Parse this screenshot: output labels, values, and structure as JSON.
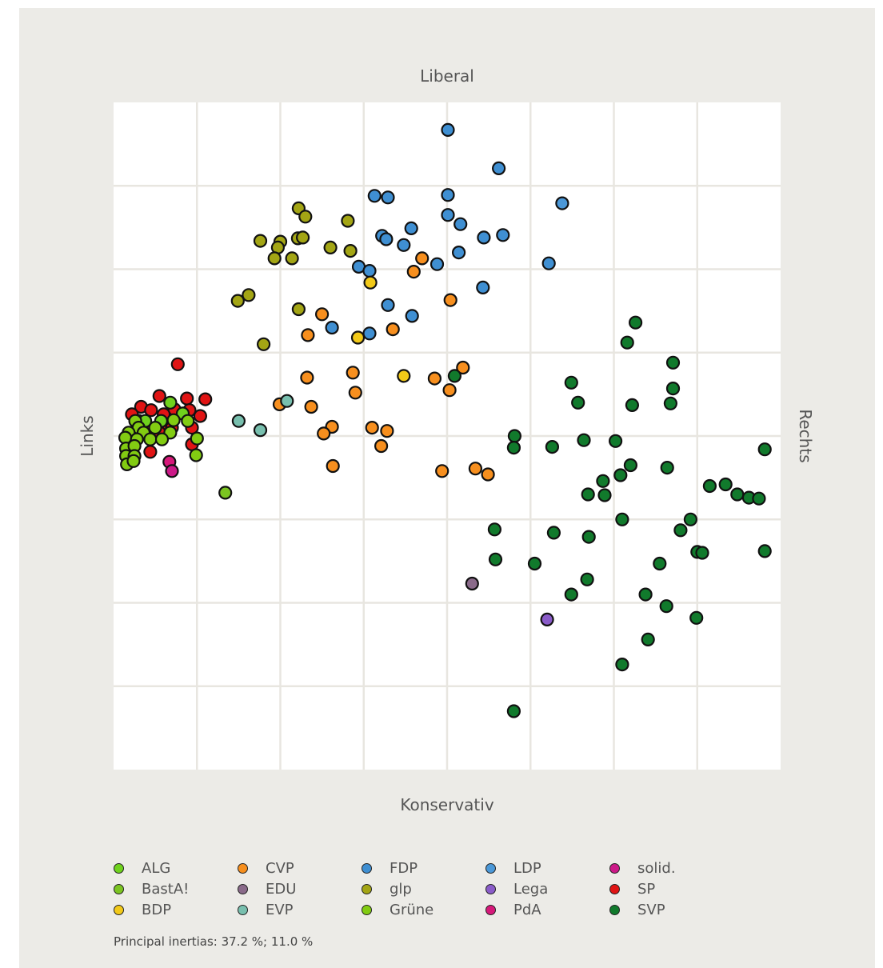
{
  "chart_data": {
    "type": "scatter",
    "title": "",
    "labels": {
      "top": "Liberal",
      "bottom": "Konservativ",
      "left": "Links",
      "right": "Rechts"
    },
    "xlim": [
      0,
      8
    ],
    "ylim": [
      -8,
      0
    ],
    "grid": true,
    "colors": {
      "ALG": "#6fd21d",
      "EVP": "#78bfae",
      "Lega": "#8a5cc9",
      "BastA!": "#7bc421",
      "FDP": "#3f8fd2",
      "PdA": "#d6197a",
      "BDP": "#f2c918",
      "glp": "#a3a514",
      "solid.": "#cc1a88",
      "CVP": "#f78f1e",
      "Grüne": "#82cc12",
      "SP": "#e01414",
      "EDU": "#8a6a8a",
      "LDP": "#4b98d8",
      "SVP": "#117a2c"
    },
    "series": [
      {
        "name": "FDP",
        "points": [
          [
            4.01,
            -0.33
          ],
          [
            4.62,
            -0.79
          ],
          [
            3.13,
            -1.12
          ],
          [
            3.29,
            -1.14
          ],
          [
            4.01,
            -1.11
          ],
          [
            4.01,
            -1.35
          ],
          [
            4.16,
            -1.46
          ],
          [
            3.57,
            -1.51
          ],
          [
            3.22,
            -1.6
          ],
          [
            3.27,
            -1.64
          ],
          [
            3.48,
            -1.71
          ],
          [
            4.44,
            -1.62
          ],
          [
            4.67,
            -1.59
          ],
          [
            4.14,
            -1.8
          ],
          [
            3.88,
            -1.94
          ],
          [
            5.22,
            -1.93
          ],
          [
            2.94,
            -1.97
          ],
          [
            3.07,
            -2.02
          ],
          [
            4.43,
            -2.22
          ],
          [
            3.29,
            -2.43
          ],
          [
            3.58,
            -2.56
          ],
          [
            2.62,
            -2.7
          ],
          [
            3.07,
            -2.77
          ]
        ]
      },
      {
        "name": "LDP",
        "points": [
          [
            5.38,
            -1.21
          ]
        ]
      },
      {
        "name": "glp",
        "points": [
          [
            2.22,
            -1.27
          ],
          [
            2.3,
            -1.37
          ],
          [
            2.81,
            -1.42
          ],
          [
            1.76,
            -1.66
          ],
          [
            2.0,
            -1.67
          ],
          [
            2.21,
            -1.63
          ],
          [
            2.27,
            -1.62
          ],
          [
            1.97,
            -1.74
          ],
          [
            2.6,
            -1.74
          ],
          [
            2.84,
            -1.78
          ],
          [
            1.93,
            -1.87
          ],
          [
            2.14,
            -1.87
          ],
          [
            1.49,
            -2.38
          ],
          [
            1.62,
            -2.31
          ],
          [
            2.22,
            -2.48
          ],
          [
            1.8,
            -2.9
          ]
        ]
      },
      {
        "name": "BDP",
        "points": [
          [
            3.08,
            -2.16
          ],
          [
            2.93,
            -2.82
          ],
          [
            3.48,
            -3.28
          ]
        ]
      },
      {
        "name": "CVP",
        "points": [
          [
            3.7,
            -1.87
          ],
          [
            3.6,
            -2.03
          ],
          [
            4.04,
            -2.37
          ],
          [
            2.5,
            -2.54
          ],
          [
            2.33,
            -2.79
          ],
          [
            3.35,
            -2.72
          ],
          [
            4.19,
            -3.18
          ],
          [
            2.87,
            -3.24
          ],
          [
            2.32,
            -3.3
          ],
          [
            3.85,
            -3.31
          ],
          [
            4.03,
            -3.45
          ],
          [
            2.9,
            -3.48
          ],
          [
            1.99,
            -3.62
          ],
          [
            2.37,
            -3.65
          ],
          [
            2.62,
            -3.89
          ],
          [
            3.1,
            -3.9
          ],
          [
            3.28,
            -3.94
          ],
          [
            2.52,
            -3.97
          ],
          [
            3.21,
            -4.12
          ],
          [
            2.63,
            -4.36
          ],
          [
            4.34,
            -4.39
          ],
          [
            3.94,
            -4.42
          ],
          [
            4.49,
            -4.46
          ]
        ]
      },
      {
        "name": "EVP",
        "points": [
          [
            2.08,
            -3.58
          ],
          [
            1.5,
            -3.82
          ],
          [
            1.76,
            -3.93
          ]
        ]
      },
      {
        "name": "SP",
        "points": [
          [
            0.77,
            -3.14
          ],
          [
            0.55,
            -3.52
          ],
          [
            0.88,
            -3.55
          ],
          [
            1.1,
            -3.56
          ],
          [
            0.33,
            -3.65
          ],
          [
            0.45,
            -3.69
          ],
          [
            0.73,
            -3.68
          ],
          [
            0.91,
            -3.69
          ],
          [
            0.22,
            -3.74
          ],
          [
            0.6,
            -3.74
          ],
          [
            1.04,
            -3.76
          ],
          [
            0.38,
            -3.87
          ],
          [
            0.65,
            -3.86
          ],
          [
            0.46,
            -3.91
          ],
          [
            0.7,
            -3.9
          ],
          [
            0.94,
            -3.9
          ],
          [
            0.3,
            -3.96
          ],
          [
            0.55,
            -3.96
          ],
          [
            0.2,
            -4.0
          ],
          [
            0.94,
            -4.1
          ],
          [
            0.44,
            -4.19
          ]
        ]
      },
      {
        "name": "ALG",
        "points": [
          [
            0.68,
            -3.6
          ],
          [
            0.83,
            -3.73
          ],
          [
            0.3,
            -3.82
          ],
          [
            0.57,
            -3.82
          ],
          [
            0.38,
            -3.82
          ]
        ]
      },
      {
        "name": "Grüne",
        "points": [
          [
            0.26,
            -3.82
          ],
          [
            0.72,
            -3.81
          ],
          [
            0.89,
            -3.82
          ],
          [
            0.3,
            -3.9
          ],
          [
            0.5,
            -3.9
          ],
          [
            0.18,
            -3.96
          ],
          [
            0.36,
            -3.96
          ],
          [
            0.68,
            -3.96
          ],
          [
            0.14,
            -4.02
          ],
          [
            0.28,
            -4.04
          ],
          [
            0.44,
            -4.04
          ],
          [
            0.58,
            -4.04
          ],
          [
            1.0,
            -4.03
          ],
          [
            0.15,
            -4.15
          ],
          [
            0.25,
            -4.12
          ],
          [
            0.99,
            -4.23
          ],
          [
            0.15,
            -4.24
          ],
          [
            0.25,
            -4.24
          ],
          [
            0.16,
            -4.34
          ],
          [
            0.24,
            -4.3
          ]
        ]
      },
      {
        "name": "BastA!",
        "points": [
          [
            1.34,
            -4.68
          ]
        ]
      },
      {
        "name": "PdA",
        "points": [
          [
            0.67,
            -4.31
          ]
        ]
      },
      {
        "name": "solid.",
        "points": [
          [
            0.7,
            -4.42
          ]
        ]
      },
      {
        "name": "SVP",
        "points": [
          [
            6.26,
            -2.64
          ],
          [
            6.16,
            -2.88
          ],
          [
            6.71,
            -3.12
          ],
          [
            4.09,
            -3.28
          ],
          [
            5.49,
            -3.36
          ],
          [
            6.71,
            -3.43
          ],
          [
            6.68,
            -3.61
          ],
          [
            6.22,
            -3.63
          ],
          [
            5.57,
            -3.6
          ],
          [
            4.81,
            -4.0
          ],
          [
            5.64,
            -4.05
          ],
          [
            6.02,
            -4.06
          ],
          [
            4.8,
            -4.14
          ],
          [
            5.26,
            -4.13
          ],
          [
            7.81,
            -4.16
          ],
          [
            6.2,
            -4.35
          ],
          [
            6.64,
            -4.38
          ],
          [
            6.08,
            -4.47
          ],
          [
            5.87,
            -4.54
          ],
          [
            7.15,
            -4.6
          ],
          [
            7.34,
            -4.58
          ],
          [
            5.69,
            -4.7
          ],
          [
            7.48,
            -4.7
          ],
          [
            7.62,
            -4.74
          ],
          [
            5.89,
            -4.71
          ],
          [
            7.74,
            -4.75
          ],
          [
            6.1,
            -5.0
          ],
          [
            6.92,
            -5.0
          ],
          [
            4.57,
            -5.12
          ],
          [
            5.28,
            -5.16
          ],
          [
            6.8,
            -5.13
          ],
          [
            5.7,
            -5.21
          ],
          [
            7.0,
            -5.39
          ],
          [
            7.06,
            -5.4
          ],
          [
            7.81,
            -5.38
          ],
          [
            4.58,
            -5.48
          ],
          [
            5.05,
            -5.53
          ],
          [
            6.55,
            -5.53
          ],
          [
            5.68,
            -5.72
          ],
          [
            5.49,
            -5.9
          ],
          [
            6.38,
            -5.9
          ],
          [
            6.63,
            -6.04
          ],
          [
            6.99,
            -6.18
          ],
          [
            6.41,
            -6.44
          ],
          [
            6.1,
            -6.74
          ],
          [
            4.8,
            -7.3
          ]
        ]
      },
      {
        "name": "EDU",
        "points": [
          [
            4.3,
            -5.77
          ]
        ]
      },
      {
        "name": "Lega",
        "points": [
          [
            5.2,
            -6.2
          ]
        ]
      }
    ],
    "legend": [
      "ALG",
      "BastA!",
      "BDP",
      "CVP",
      "EDU",
      "EVP",
      "FDP",
      "glp",
      "Grüne",
      "LDP",
      "Lega",
      "PdA",
      "solid.",
      "SP",
      "SVP"
    ],
    "footnote": "Principal inertias: 37.2 %; 11.0 %"
  }
}
